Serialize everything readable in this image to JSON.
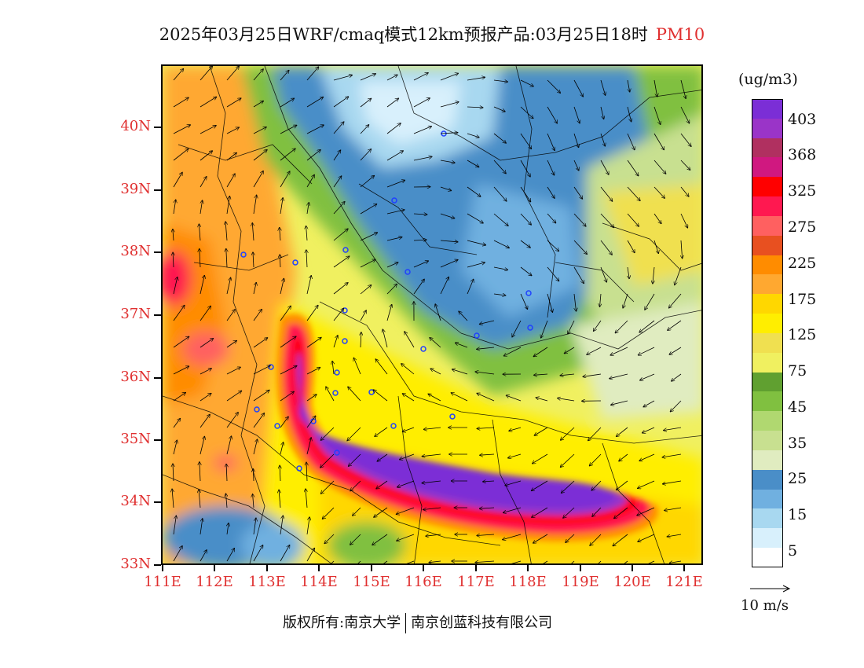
{
  "title": {
    "main": "2025年03月25日WRF/cmaq模式12km预报产品:03月25日18时",
    "pollutant": "PM10",
    "pollutant_color": "#e03030"
  },
  "axes": {
    "lat_labels": [
      "40N",
      "39N",
      "38N",
      "37N",
      "36N",
      "35N",
      "34N",
      "33N"
    ],
    "lon_labels": [
      "111E",
      "112E",
      "113E",
      "114E",
      "115E",
      "116E",
      "117E",
      "118E",
      "119E",
      "120E",
      "121E"
    ],
    "label_color": "#e03030"
  },
  "legend": {
    "unit": "(ug/m3)",
    "levels": [
      "403",
      "368",
      "325",
      "275",
      "225",
      "175",
      "125",
      "75",
      "45",
      "35",
      "25",
      "15",
      "5"
    ],
    "colors": [
      "#7b2ed6",
      "#9a34c8",
      "#b03060",
      "#d01880",
      "#ff0000",
      "#ff1850",
      "#ff6060",
      "#e85020",
      "#ff8c00",
      "#ffa830",
      "#ffd700",
      "#ffee00",
      "#f0e050",
      "#f0f060",
      "#60a030",
      "#80c040",
      "#b0d870",
      "#c8e090",
      "#e0ecc0",
      "#4a8ec8",
      "#70b0e0",
      "#a8d8f0",
      "#d8f0fc",
      "#ffffff"
    ]
  },
  "wind_scale": {
    "label": "10  m/s"
  },
  "credit": {
    "left": "版权所有:南京大学",
    "right": "南京创蓝科技有限公司"
  },
  "chart_data": {
    "type": "heatmap",
    "variable": "PM10",
    "xlim": [
      111,
      121.4
    ],
    "ylim": [
      33,
      41
    ]
  }
}
